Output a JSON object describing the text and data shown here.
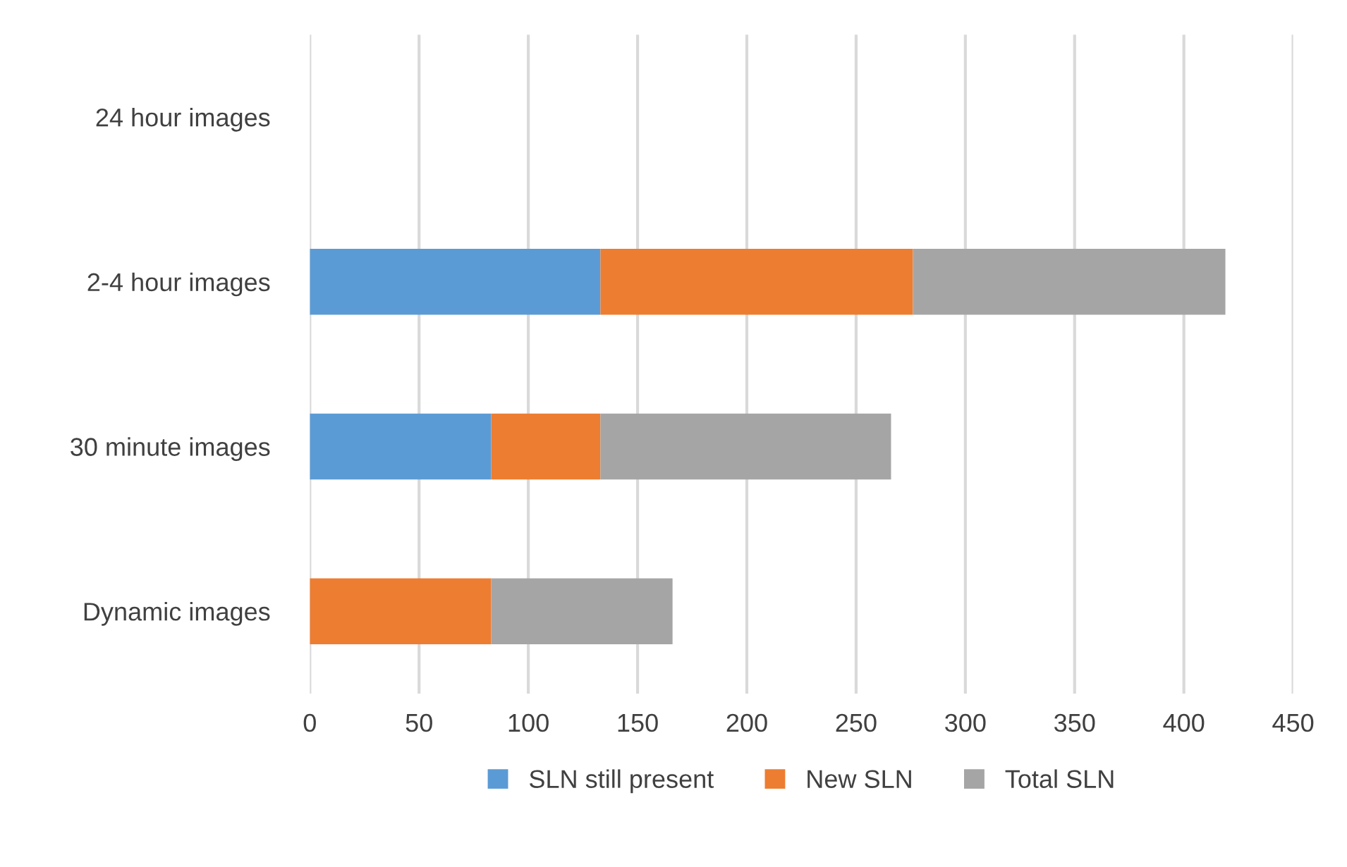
{
  "chart_data": {
    "type": "bar",
    "orientation": "horizontal",
    "stacked": true,
    "categories": [
      "24 hour images",
      "2-4 hour images",
      "30 minute images",
      "Dynamic images"
    ],
    "series": [
      {
        "name": "SLN still present",
        "color": "#5b9bd5",
        "values": [
          null,
          133,
          83,
          0
        ]
      },
      {
        "name": "New SLN",
        "color": "#ed7d31",
        "values": [
          null,
          143,
          50,
          83
        ]
      },
      {
        "name": "Total SLN",
        "color": "#a5a5a5",
        "values": [
          null,
          143,
          133,
          83
        ]
      }
    ],
    "xlim": [
      0,
      450
    ],
    "xticks": [
      0,
      50,
      100,
      150,
      200,
      250,
      300,
      350,
      400,
      450
    ],
    "grid": "x",
    "legend": "bottom"
  }
}
